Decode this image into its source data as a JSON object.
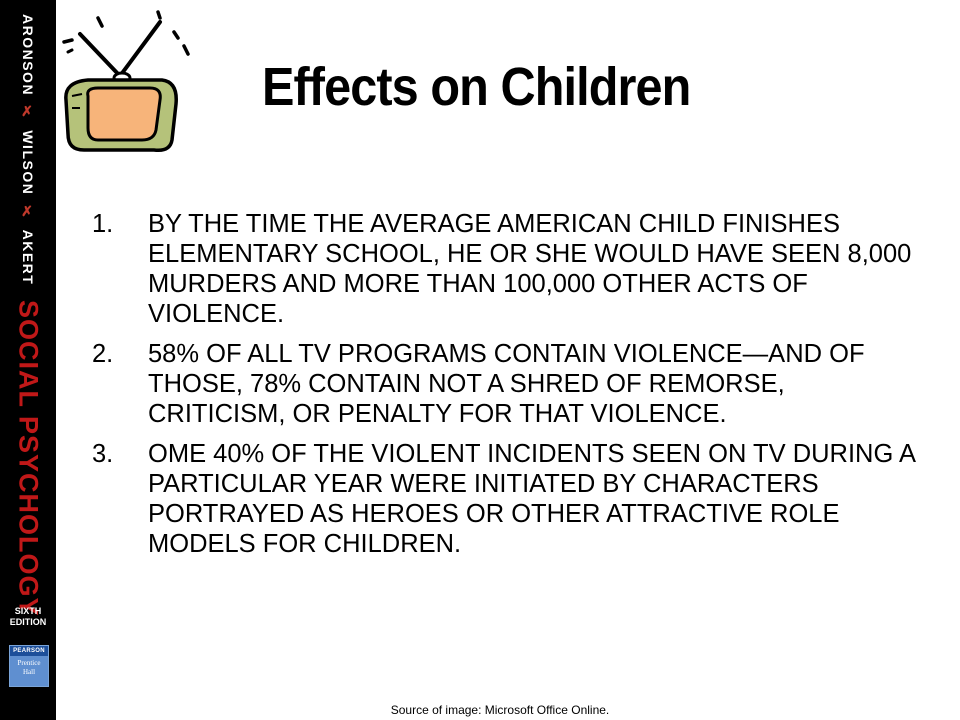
{
  "sidebar": {
    "author1": "ARONSON",
    "author2": "WILSON",
    "author3": "AKERT",
    "separator": "✗",
    "series_title": "SOCIAL PSYCHOLOGY",
    "edition_line1": "SIXTH",
    "edition_line2": "EDITION",
    "publisher_line1": "PEARSON",
    "publisher_line2": "Prentice",
    "publisher_line3": "Hall"
  },
  "slide": {
    "title": "Effects on Children",
    "items": [
      {
        "number": "1.",
        "text": "BY THE TIME THE AVERAGE AMERICAN CHILD FINISHES ELEMENTARY SCHOOL, HE OR SHE WOULD HAVE SEEN 8,000 MURDERS AND MORE THAN 100,000 OTHER ACTS OF VIOLENCE."
      },
      {
        "number": "2.",
        "text": "58% OF ALL TV PROGRAMS CONTAIN VIOLENCE—AND OF THOSE, 78% CONTAIN NOT A SHRED OF REMORSE, CRITICISM, OR PENALTY FOR THAT VIOLENCE."
      },
      {
        "number": "3.",
        "text": "OME 40% OF THE VIOLENT INCIDENTS SEEN ON TV DURING A PARTICULAR YEAR WERE INITIATED BY CHARACTERS PORTRAYED AS HEROES OR OTHER ATTRACTIVE ROLE MODELS FOR CHILDREN."
      }
    ],
    "caption": "Source of image: Microsoft Office Online."
  },
  "icons": {
    "tv": "tv-clipart-icon"
  },
  "colors": {
    "sidebar_bg": "#000000",
    "series_red": "#c01818",
    "tv_body": "#b5c27a",
    "tv_screen": "#f7b47a"
  }
}
